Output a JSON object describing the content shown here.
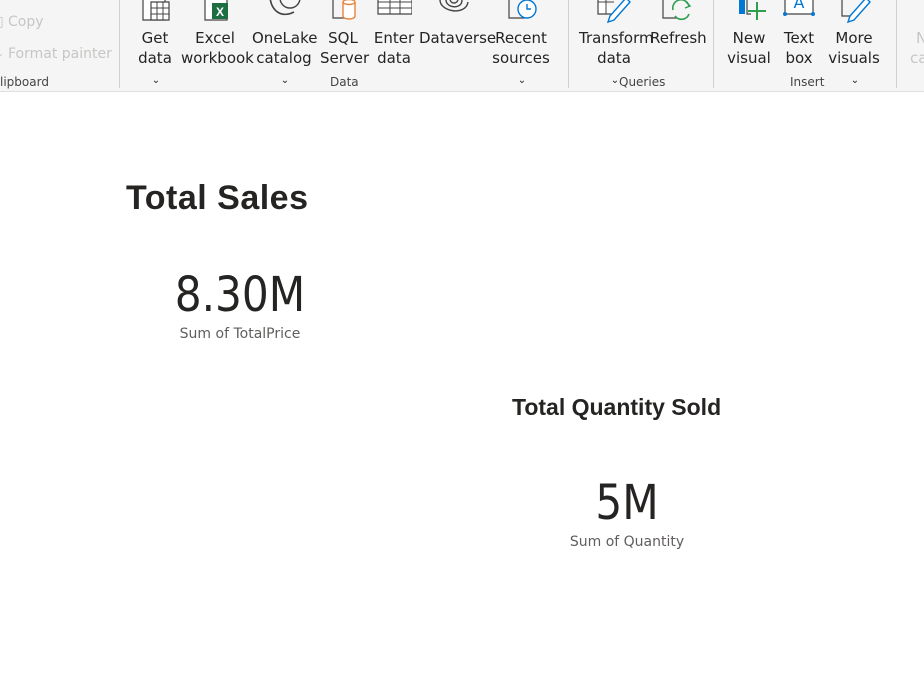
{
  "ribbon": {
    "clipboard": {
      "copy_label": "Copy",
      "format_painter_label": "Format painter",
      "group_label": "lipboard"
    },
    "data": {
      "get_data": [
        "Get",
        "data"
      ],
      "excel_workbook": [
        "Excel",
        "workbook"
      ],
      "onelake_catalog": [
        "OneLake",
        "catalog"
      ],
      "sql_server": [
        "SQL",
        "Server"
      ],
      "enter_data": [
        "Enter",
        "data"
      ],
      "dataverse": [
        "Dataverse"
      ],
      "recent_sources": [
        "Recent",
        "sources"
      ],
      "group_label": "Data"
    },
    "queries": {
      "transform_data": [
        "Transform",
        "data"
      ],
      "refresh": [
        "Refresh"
      ],
      "group_label": "Queries"
    },
    "insert": {
      "new_visual": [
        "New",
        "visual"
      ],
      "text_box": [
        "Text",
        "box"
      ],
      "more_visuals": [
        "More",
        "visuals"
      ],
      "group_label": "Insert"
    },
    "overflow_labels": [
      "N",
      "ca"
    ]
  },
  "canvas": {
    "total_sales": {
      "title": "Total Sales",
      "value": "8.30M",
      "label": "Sum of TotalPrice"
    },
    "total_quantity": {
      "title": "Total Quantity Sold",
      "value": "5M",
      "label": "Sum of Quantity"
    }
  },
  "colors": {
    "ribbon_bg": "#f5f5f5",
    "excel_green": "#1d6f42",
    "accent_blue": "#0078d4",
    "refresh_green": "#2e9e4f",
    "onelake_orange": "#e8833a",
    "disabled_text": "#c8c6c4"
  }
}
